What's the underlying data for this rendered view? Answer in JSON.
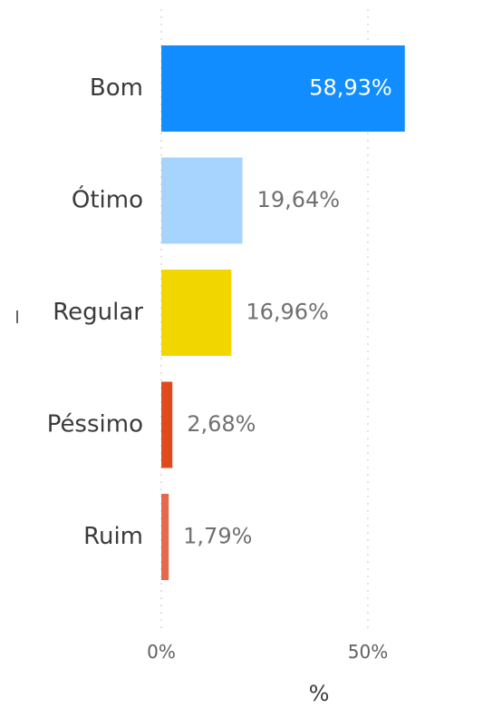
{
  "chart_data": {
    "type": "bar",
    "orientation": "horizontal",
    "categories": [
      "Bom",
      "Ótimo",
      "Regular",
      "Péssimo",
      "Ruim"
    ],
    "values": [
      58.93,
      19.64,
      16.96,
      2.68,
      1.79
    ],
    "data_labels": [
      "58,93%",
      "19,64%",
      "16,96%",
      "2,68%",
      "1,79%"
    ],
    "colors": [
      "#118DFF",
      "#A7D3FF",
      "#F2D600",
      "#E04A1F",
      "#E36A4A"
    ],
    "xlabel": "%",
    "ylabel": "",
    "xlim": [
      0,
      60
    ],
    "x_ticks": [
      {
        "value": 0,
        "label": "0%"
      },
      {
        "value": 50,
        "label": "50%"
      }
    ],
    "grid": true
  }
}
